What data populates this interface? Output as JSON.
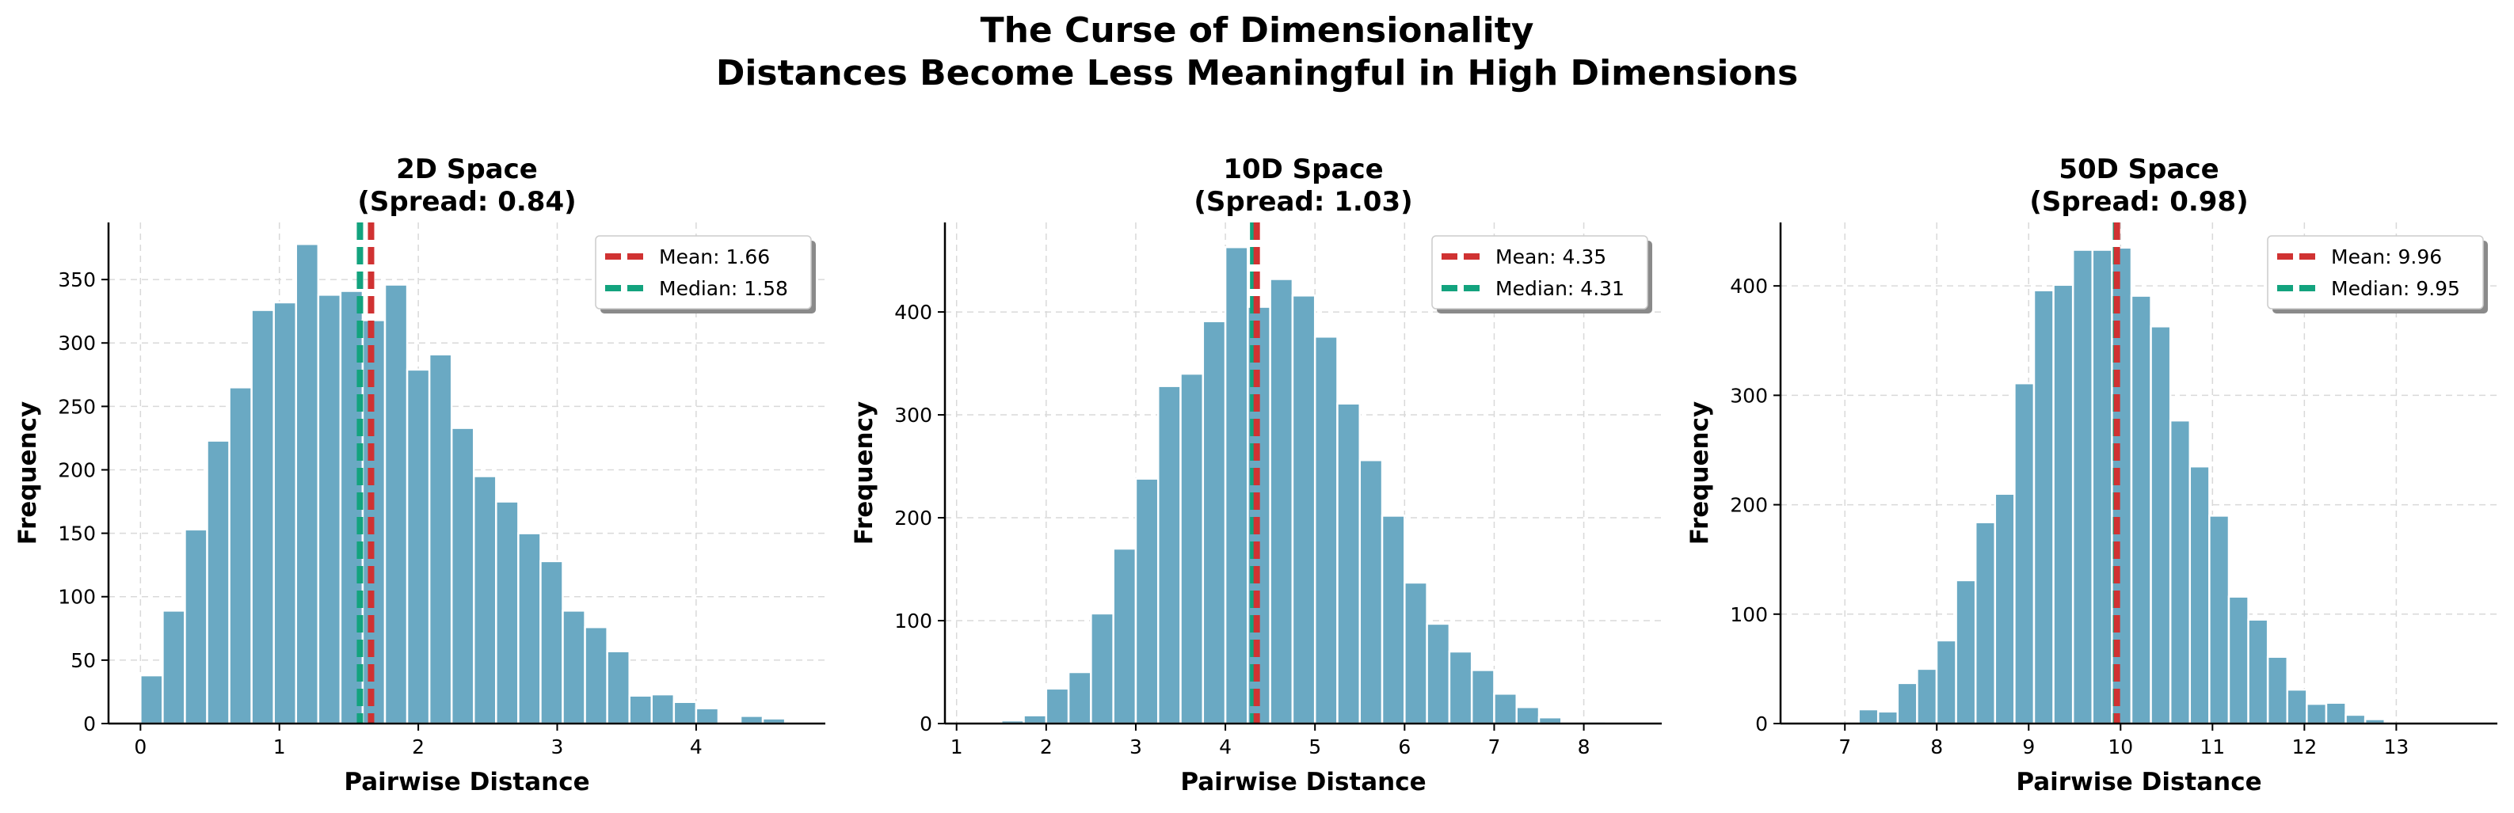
{
  "figure": {
    "title_line1": "The Curse of Dimensionality",
    "title_line2": "Distances Become Less Meaningful in High Dimensions"
  },
  "colors": {
    "bar": "#6aa9c3",
    "bar_edge": "#ffffff",
    "mean": "#d03232",
    "median": "#13a37e",
    "grid": "#d9d9d9",
    "axis": "#000000"
  },
  "chart_data": [
    {
      "type": "bar",
      "title": "2D Space",
      "subtitle": "(Spread: 0.84)",
      "xlabel": "Pairwise Distance",
      "ylabel": "Frequency",
      "xlim": [
        -0.23,
        4.93
      ],
      "ylim": [
        0,
        395
      ],
      "xticks": [
        0,
        1,
        2,
        3,
        4
      ],
      "yticks": [
        0,
        50,
        100,
        150,
        200,
        250,
        300,
        350
      ],
      "bin_start": 0.0,
      "bin_width": 0.16,
      "values": [
        38,
        89,
        153,
        223,
        265,
        326,
        332,
        378,
        338,
        341,
        318,
        346,
        279,
        291,
        233,
        195,
        175,
        150,
        128,
        89,
        76,
        57,
        22,
        23,
        17,
        12,
        0,
        6,
        4
      ],
      "mean": 1.66,
      "median": 1.58,
      "legend": [
        "Mean: 1.66",
        "Median: 1.58"
      ],
      "legend_position": "upper right",
      "grid": true
    },
    {
      "type": "bar",
      "title": "10D Space",
      "subtitle": "(Spread: 1.03)",
      "xlabel": "Pairwise Distance",
      "ylabel": "Frequency",
      "xlim": [
        0.87,
        8.87
      ],
      "ylim": [
        0,
        487
      ],
      "xticks": [
        1,
        2,
        3,
        4,
        5,
        6,
        7,
        8
      ],
      "yticks": [
        0,
        100,
        200,
        300,
        400
      ],
      "bin_start": 1.0,
      "bin_width": 0.25,
      "values": [
        0,
        1,
        3,
        8,
        34,
        50,
        107,
        170,
        238,
        328,
        340,
        391,
        463,
        405,
        432,
        416,
        376,
        311,
        256,
        202,
        137,
        97,
        70,
        52,
        29,
        16,
        6,
        1,
        2,
        1
      ],
      "mean": 4.35,
      "median": 4.31,
      "legend": [
        "Mean: 4.35",
        "Median: 4.31"
      ],
      "legend_position": "upper right",
      "grid": true
    },
    {
      "type": "bar",
      "title": "50D Space",
      "subtitle": "(Spread: 0.98)",
      "xlabel": "Pairwise Distance",
      "ylabel": "Frequency",
      "xlim": [
        6.3,
        14.1
      ],
      "ylim": [
        0,
        458
      ],
      "xticks": [
        7,
        8,
        9,
        10,
        11,
        12,
        13
      ],
      "yticks": [
        0,
        100,
        200,
        300,
        400
      ],
      "bin_start": 7.15,
      "bin_width": 0.212,
      "values": [
        13,
        11,
        37,
        50,
        76,
        131,
        184,
        210,
        311,
        396,
        401,
        433,
        433,
        435,
        391,
        363,
        277,
        235,
        190,
        116,
        95,
        61,
        31,
        18,
        19,
        8,
        4
      ],
      "mean": 9.96,
      "median": 9.95,
      "legend": [
        "Mean: 9.96",
        "Median: 9.95"
      ],
      "legend_position": "upper right",
      "grid": true
    }
  ]
}
